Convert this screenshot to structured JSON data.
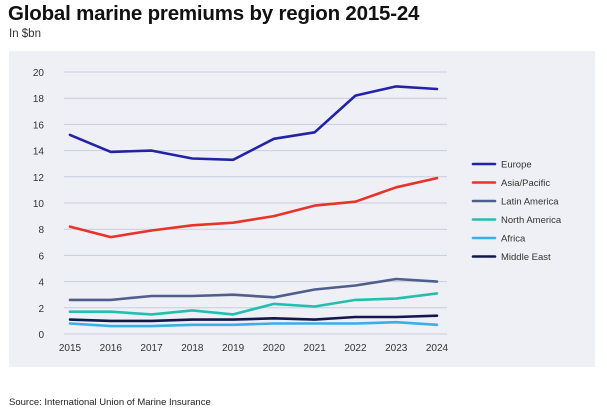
{
  "title": "Global marine premiums by region 2015-24",
  "subtitle": "In $bn",
  "source": "Source: International Union of Marine Insurance",
  "chart_data": {
    "type": "line",
    "title": "Global marine premiums by region 2015-24",
    "ylabel": "In $bn",
    "x": [
      "2015",
      "2016",
      "2017",
      "2018",
      "2019",
      "2020",
      "2021",
      "2022",
      "2023",
      "2024"
    ],
    "ylim": [
      0,
      20
    ],
    "yticks": [
      "0",
      "2",
      "4",
      "6",
      "8",
      "10",
      "12",
      "14",
      "16",
      "18",
      "20"
    ],
    "grid": "horizontal",
    "legend_position": "right",
    "series": [
      {
        "name": "Europe",
        "color": "#2323a8",
        "values": [
          15.2,
          13.9,
          14.0,
          13.4,
          13.3,
          14.9,
          15.4,
          18.2,
          18.9,
          18.7
        ]
      },
      {
        "name": "Asia/Pacific",
        "color": "#e8332a",
        "values": [
          8.2,
          7.4,
          7.9,
          8.3,
          8.5,
          9.0,
          9.8,
          10.1,
          11.2,
          11.9
        ]
      },
      {
        "name": "Latin America",
        "color": "#4f5f8c",
        "values": [
          2.6,
          2.6,
          2.9,
          2.9,
          3.0,
          2.8,
          3.4,
          3.7,
          4.2,
          4.0
        ]
      },
      {
        "name": "North America",
        "color": "#22bfae",
        "values": [
          1.7,
          1.7,
          1.5,
          1.8,
          1.5,
          2.3,
          2.1,
          2.6,
          2.7,
          3.1
        ]
      },
      {
        "name": "Africa",
        "color": "#3aaee8",
        "values": [
          0.8,
          0.6,
          0.6,
          0.7,
          0.7,
          0.8,
          0.8,
          0.8,
          0.9,
          0.7
        ]
      },
      {
        "name": "Middle East",
        "color": "#15174a",
        "values": [
          1.1,
          1.0,
          1.0,
          1.1,
          1.1,
          1.2,
          1.1,
          1.3,
          1.3,
          1.4
        ]
      }
    ]
  }
}
